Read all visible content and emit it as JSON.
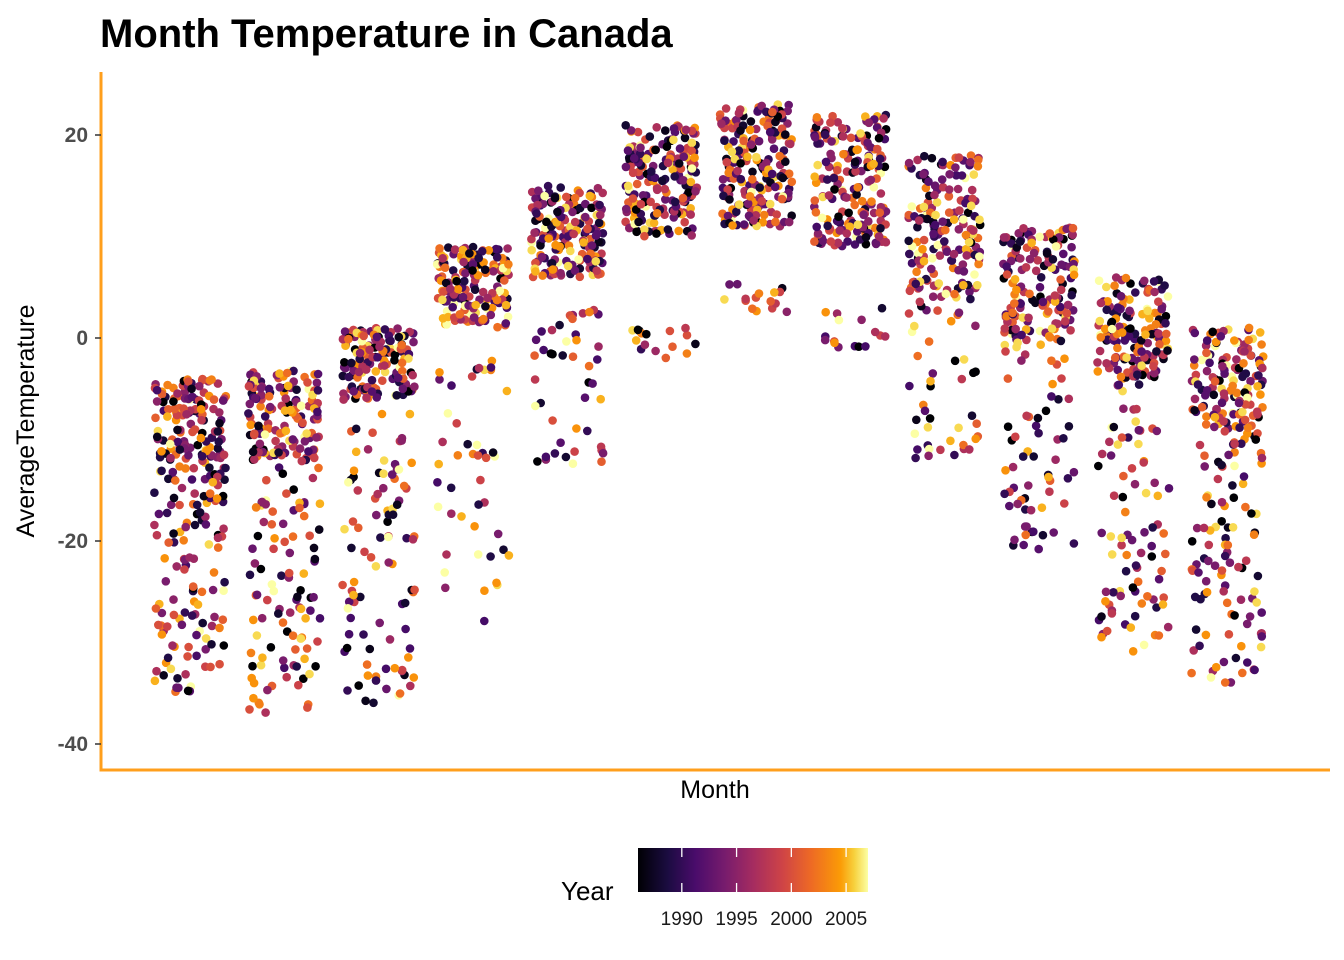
{
  "chart_data": {
    "type": "scatter",
    "title": "Month Temperature in Canada",
    "xlabel": "Month",
    "ylabel": "AverageTemperature",
    "ylim": [
      -42,
      26
    ],
    "yticks": [
      -40,
      -20,
      0,
      20
    ],
    "xticks_shown": false,
    "grid": false,
    "axis_line_color": "#FF9F1C",
    "jitter": true,
    "months": [
      {
        "month": 1,
        "core_min": -14,
        "core_max": -4,
        "core_points": 140,
        "tail_min": -35,
        "tail_max": -14,
        "tail_points": 110
      },
      {
        "month": 2,
        "core_min": -12,
        "core_max": -3,
        "core_points": 140,
        "tail_min": -37,
        "tail_max": -12,
        "tail_points": 100
      },
      {
        "month": 3,
        "core_min": -6,
        "core_max": 1,
        "core_points": 150,
        "tail_min": -36,
        "tail_max": -6,
        "tail_points": 95
      },
      {
        "month": 4,
        "core_min": 1,
        "core_max": 9,
        "core_points": 160,
        "tail_min": -28,
        "tail_max": -2,
        "tail_points": 45
      },
      {
        "month": 5,
        "core_min": 6,
        "core_max": 15,
        "core_points": 170,
        "tail_min": -14,
        "tail_max": 3,
        "tail_points": 45
      },
      {
        "month": 6,
        "core_min": 10,
        "core_max": 21,
        "core_points": 190,
        "tail_min": -2,
        "tail_max": 1,
        "tail_points": 16
      },
      {
        "month": 7,
        "core_min": 11,
        "core_max": 23,
        "core_points": 200,
        "tail_min": 2.5,
        "tail_max": 5.5,
        "tail_points": 16
      },
      {
        "month": 8,
        "core_min": 9,
        "core_max": 22,
        "core_points": 190,
        "tail_min": -1,
        "tail_max": 3,
        "tail_points": 16
      },
      {
        "month": 9,
        "core_min": 4,
        "core_max": 18,
        "core_points": 170,
        "tail_min": -12,
        "tail_max": 4,
        "tail_points": 45
      },
      {
        "month": 10,
        "core_min": -1,
        "core_max": 11,
        "core_points": 160,
        "tail_min": -21,
        "tail_max": -1,
        "tail_points": 60
      },
      {
        "month": 11,
        "core_min": -4,
        "core_max": 6,
        "core_points": 150,
        "tail_min": -31,
        "tail_max": -4,
        "tail_points": 85
      },
      {
        "month": 12,
        "core_min": -10,
        "core_max": 1,
        "core_points": 140,
        "tail_min": -34,
        "tail_max": -10,
        "tail_points": 100
      }
    ],
    "color_scale": {
      "name": "Year",
      "palette": "inferno",
      "min": 1986,
      "max": 2007,
      "ticks": [
        1990,
        1995,
        2000,
        2005
      ],
      "tick_labels": [
        "1990",
        "1995",
        "2000",
        "2005"
      ]
    }
  }
}
